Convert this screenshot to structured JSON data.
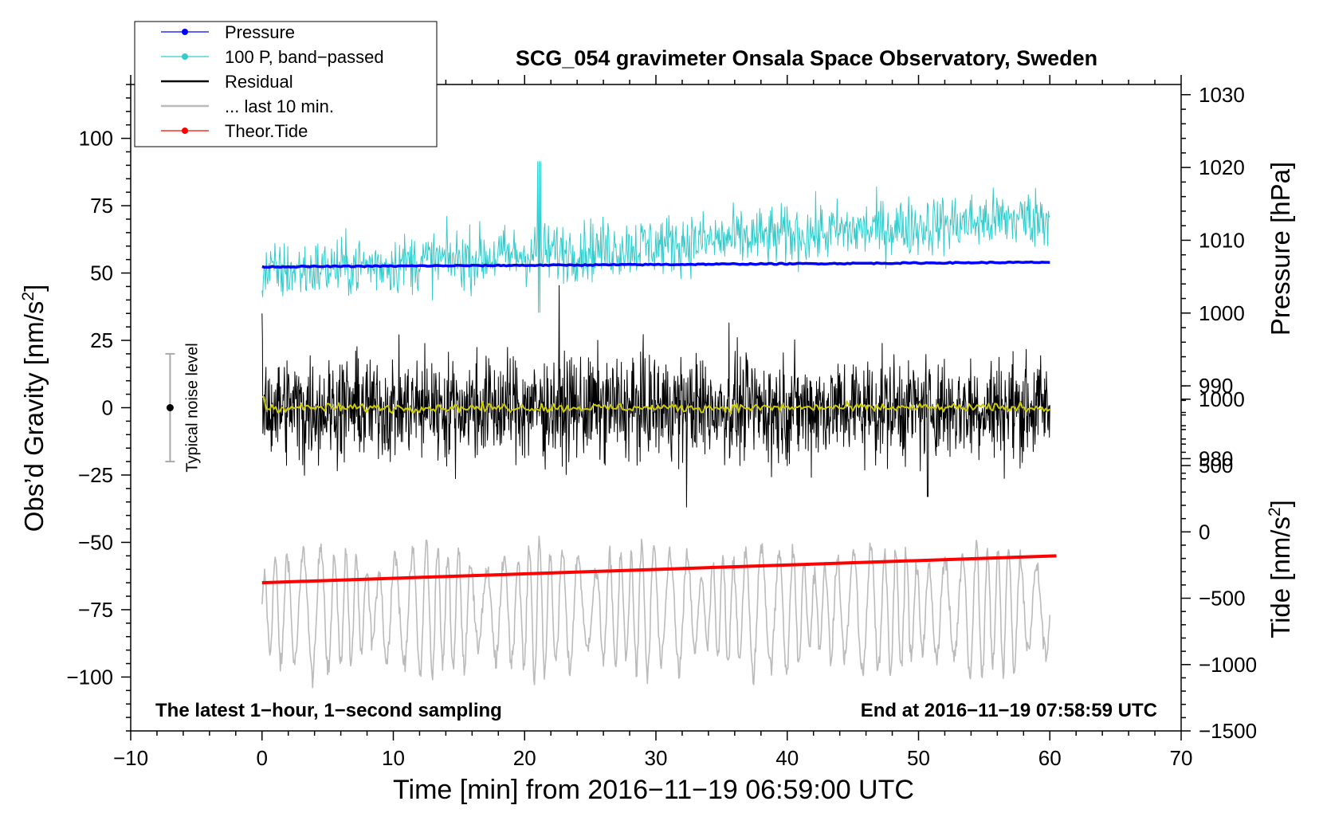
{
  "chart_data": {
    "type": "line",
    "title": "SCG_054 gravimeter Onsala Space Observatory, Sweden",
    "xlabel": "Time [min] from 2016−11−19 06:59:00 UTC",
    "ylabel_left": "Obs’d Gravity [nm/s",
    "ylabel_left_sup": "2",
    "ylabel_left_end": "]",
    "ylabel_right_pressure": "Pressure [hPa]",
    "ylabel_right_tide": "Tide [nm/s",
    "ylabel_right_tide_sup": "2",
    "ylabel_right_tide_end": "]",
    "xlim": [
      -10,
      70
    ],
    "ylim": [
      -120,
      120
    ],
    "x_ticks": [
      -10,
      0,
      10,
      20,
      30,
      40,
      50,
      60,
      70
    ],
    "x_tick_labels": [
      "−10",
      "0",
      "10",
      "20",
      "30",
      "40",
      "50",
      "60",
      "70"
    ],
    "y_ticks": [
      100,
      75,
      50,
      25,
      0,
      -25,
      -50,
      -75,
      -100
    ],
    "y_tick_labels": [
      "100",
      "75",
      "50",
      "25",
      "0",
      "−25",
      "−50",
      "−75",
      "−100"
    ],
    "pressure_ticks": [
      1030,
      1020,
      1010,
      1000,
      990,
      980
    ],
    "pressure_tick_labels": [
      "1030",
      "1020",
      "1010",
      "1000",
      "990",
      "980"
    ],
    "pressure_axis": {
      "value_at_gravity_100": 1024,
      "hpa_per_nm_s2": 0.37
    },
    "tide_ticks": [
      1000,
      500,
      0,
      -500,
      -1000,
      -1500
    ],
    "tide_tick_labels": [
      "1000",
      "500",
      "0",
      "−500",
      "−1000",
      "−1500"
    ],
    "tide_axis": {
      "value_at_gravity_minus_120": -1500,
      "nm_s2_per_gravity_unit": 20.3
    },
    "legend": [
      {
        "label": "Pressure",
        "color": "#0000ff",
        "marker": true
      },
      {
        "label": "100 P, band−passed",
        "color": "#33cccc",
        "marker": true
      },
      {
        "label": "Residual",
        "color": "#000000",
        "marker": false
      },
      {
        "label": "... last 10 min.",
        "color": "#bbbbbb",
        "marker": false
      },
      {
        "label": "Theor.Tide",
        "color": "#ff0000",
        "marker": true
      }
    ],
    "series": [
      {
        "name": "Pressure",
        "color": "#0000ff",
        "x_range": [
          0,
          60
        ],
        "start": 52.3,
        "end": 54.0
      },
      {
        "name": "100 P, band−passed",
        "color": "#33cccc",
        "x_range": [
          0,
          60
        ],
        "start": 50,
        "end": 71,
        "noise_amplitude": 7
      },
      {
        "name": "Residual",
        "color": "#000000",
        "x_range": [
          0,
          60
        ],
        "center": 0,
        "noise_amplitude": 12
      },
      {
        "name": "Residual smoothed",
        "color": "#cccc00",
        "x_range": [
          0,
          60
        ],
        "center": 0,
        "noise_amplitude": 0.8
      },
      {
        "name": "... last 10 min.",
        "color": "#bbbbbb",
        "x_range": [
          0,
          60
        ],
        "center": -75,
        "noise_amplitude": 18
      },
      {
        "name": "Theor.Tide",
        "color": "#ff0000",
        "x_range": [
          0,
          60.5
        ],
        "start": -65,
        "end": -55
      }
    ],
    "noise_bar": {
      "label": "Typical noise level",
      "x": -7,
      "low": -20,
      "high": 20,
      "center": 0
    },
    "annotation_left": "The latest 1−hour, 1−second sampling",
    "annotation_right": "End at 2016−11−19 07:58:59 UTC"
  }
}
